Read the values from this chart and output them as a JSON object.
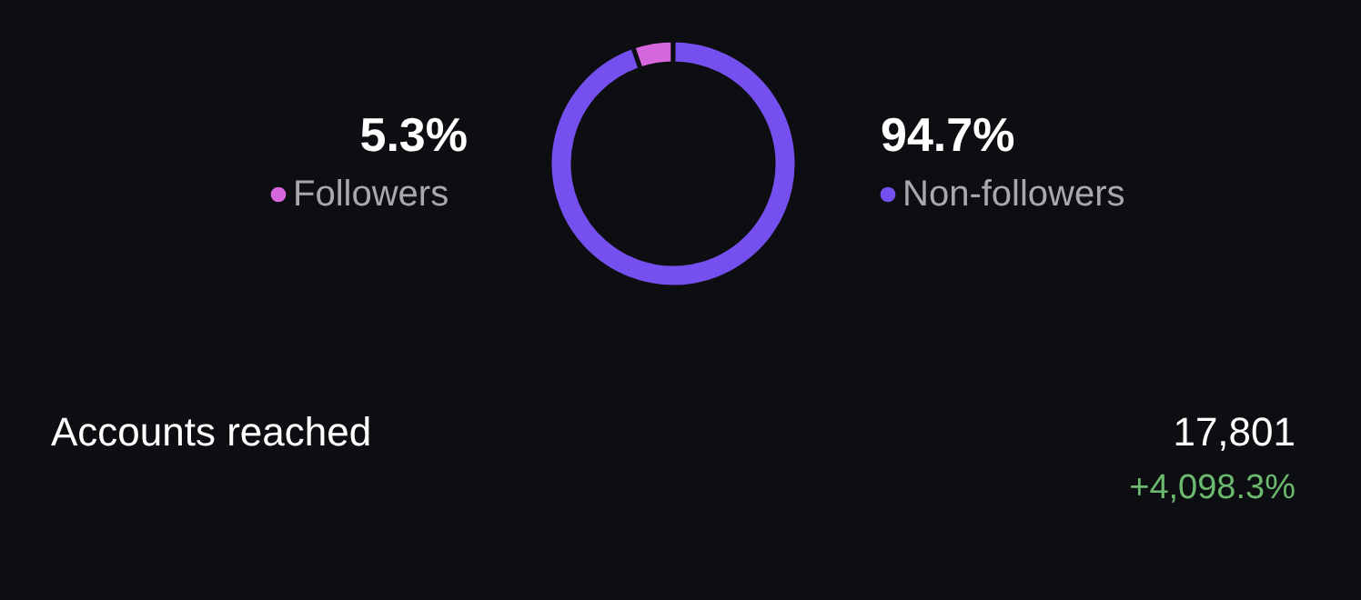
{
  "chart_data": {
    "type": "donut",
    "categories": [
      "Followers",
      "Non-followers"
    ],
    "values": [
      5.3,
      94.7
    ],
    "colors": [
      "#d566dd",
      "#7650ee"
    ],
    "value_labels": [
      "5.3%",
      "94.7%"
    ],
    "legend": "bottom right",
    "annotations": [
      "Accounts reached",
      "17,801",
      "+4,098.3%"
    ]
  }
}
